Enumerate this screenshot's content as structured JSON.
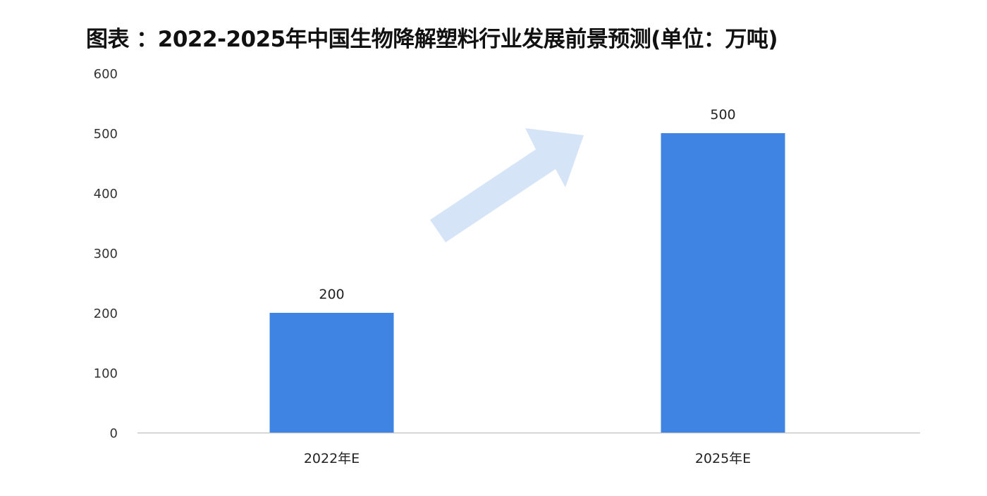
{
  "chart_data": {
    "type": "bar",
    "title": "图表 ：2022-2025年中国生物降解塑料行业发展前景预测(单位：万吨)",
    "categories": [
      "2022年E",
      "2025年E"
    ],
    "values": [
      200,
      500
    ],
    "data_labels": [
      "200",
      "500"
    ],
    "xlabel": "",
    "ylabel": "",
    "ylim": [
      0,
      600
    ],
    "yticks": [
      0,
      100,
      200,
      300,
      400,
      500,
      600
    ],
    "grid": false,
    "legend": "none",
    "colors": {
      "bar": "#3f84e3",
      "arrow": "#d6e4f8",
      "axis": "#c8c8c8"
    },
    "decorations": [
      "upward-trend-arrow"
    ]
  }
}
